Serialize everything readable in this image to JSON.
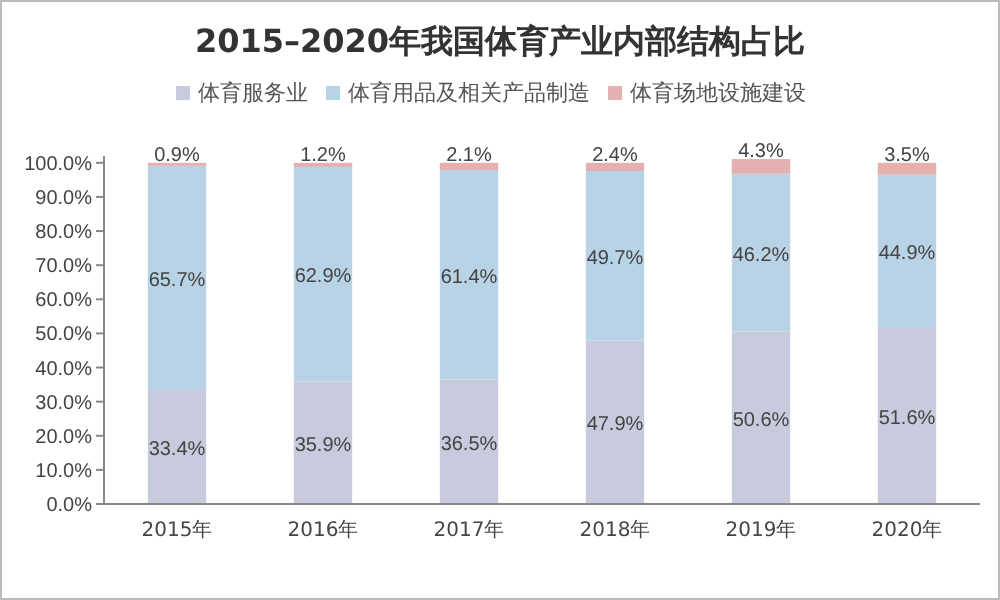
{
  "chart_data": {
    "type": "bar",
    "title": "2015–2020年我国体育产业内部结构占比",
    "categories": [
      "2015年",
      "2016年",
      "2017年",
      "2018年",
      "2019年",
      "2020年"
    ],
    "stacked": true,
    "legend": "top",
    "grid": false,
    "series": [
      {
        "name": "体育服务业",
        "color": "#c8cbdd",
        "values": [
          33.4,
          35.9,
          36.5,
          47.9,
          50.6,
          51.6
        ],
        "value_labels": [
          "33.4%",
          "35.9%",
          "36.5%",
          "47.9%",
          "50.6%",
          "51.6%"
        ]
      },
      {
        "name": "体育用品及相关产品制造",
        "color": "#b8d2e6",
        "values": [
          65.7,
          62.9,
          61.4,
          49.7,
          46.2,
          44.9
        ],
        "value_labels": [
          "65.7%",
          "62.9%",
          "61.4%",
          "49.7%",
          "46.2%",
          "44.9%"
        ]
      },
      {
        "name": "体育场地设施建设",
        "color": "#e4b0b0",
        "values": [
          0.9,
          1.2,
          2.1,
          2.4,
          4.3,
          3.5
        ],
        "value_labels": [
          "0.9%",
          "1.2%",
          "2.1%",
          "2.4%",
          "4.3%",
          "3.5%"
        ]
      }
    ],
    "ylim": [
      0,
      102
    ],
    "yticks": [
      {
        "value": 0,
        "label": "0.0%"
      },
      {
        "value": 10,
        "label": "10.0%"
      },
      {
        "value": 20,
        "label": "20.0%"
      },
      {
        "value": 30,
        "label": "30.0%"
      },
      {
        "value": 40,
        "label": "40.0%"
      },
      {
        "value": 50,
        "label": "50.0%"
      },
      {
        "value": 60,
        "label": "60.0%"
      },
      {
        "value": 70,
        "label": "70.0%"
      },
      {
        "value": 80,
        "label": "80.0%"
      },
      {
        "value": 90,
        "label": "90.0%"
      },
      {
        "value": 100,
        "label": "100.0%"
      }
    ]
  }
}
